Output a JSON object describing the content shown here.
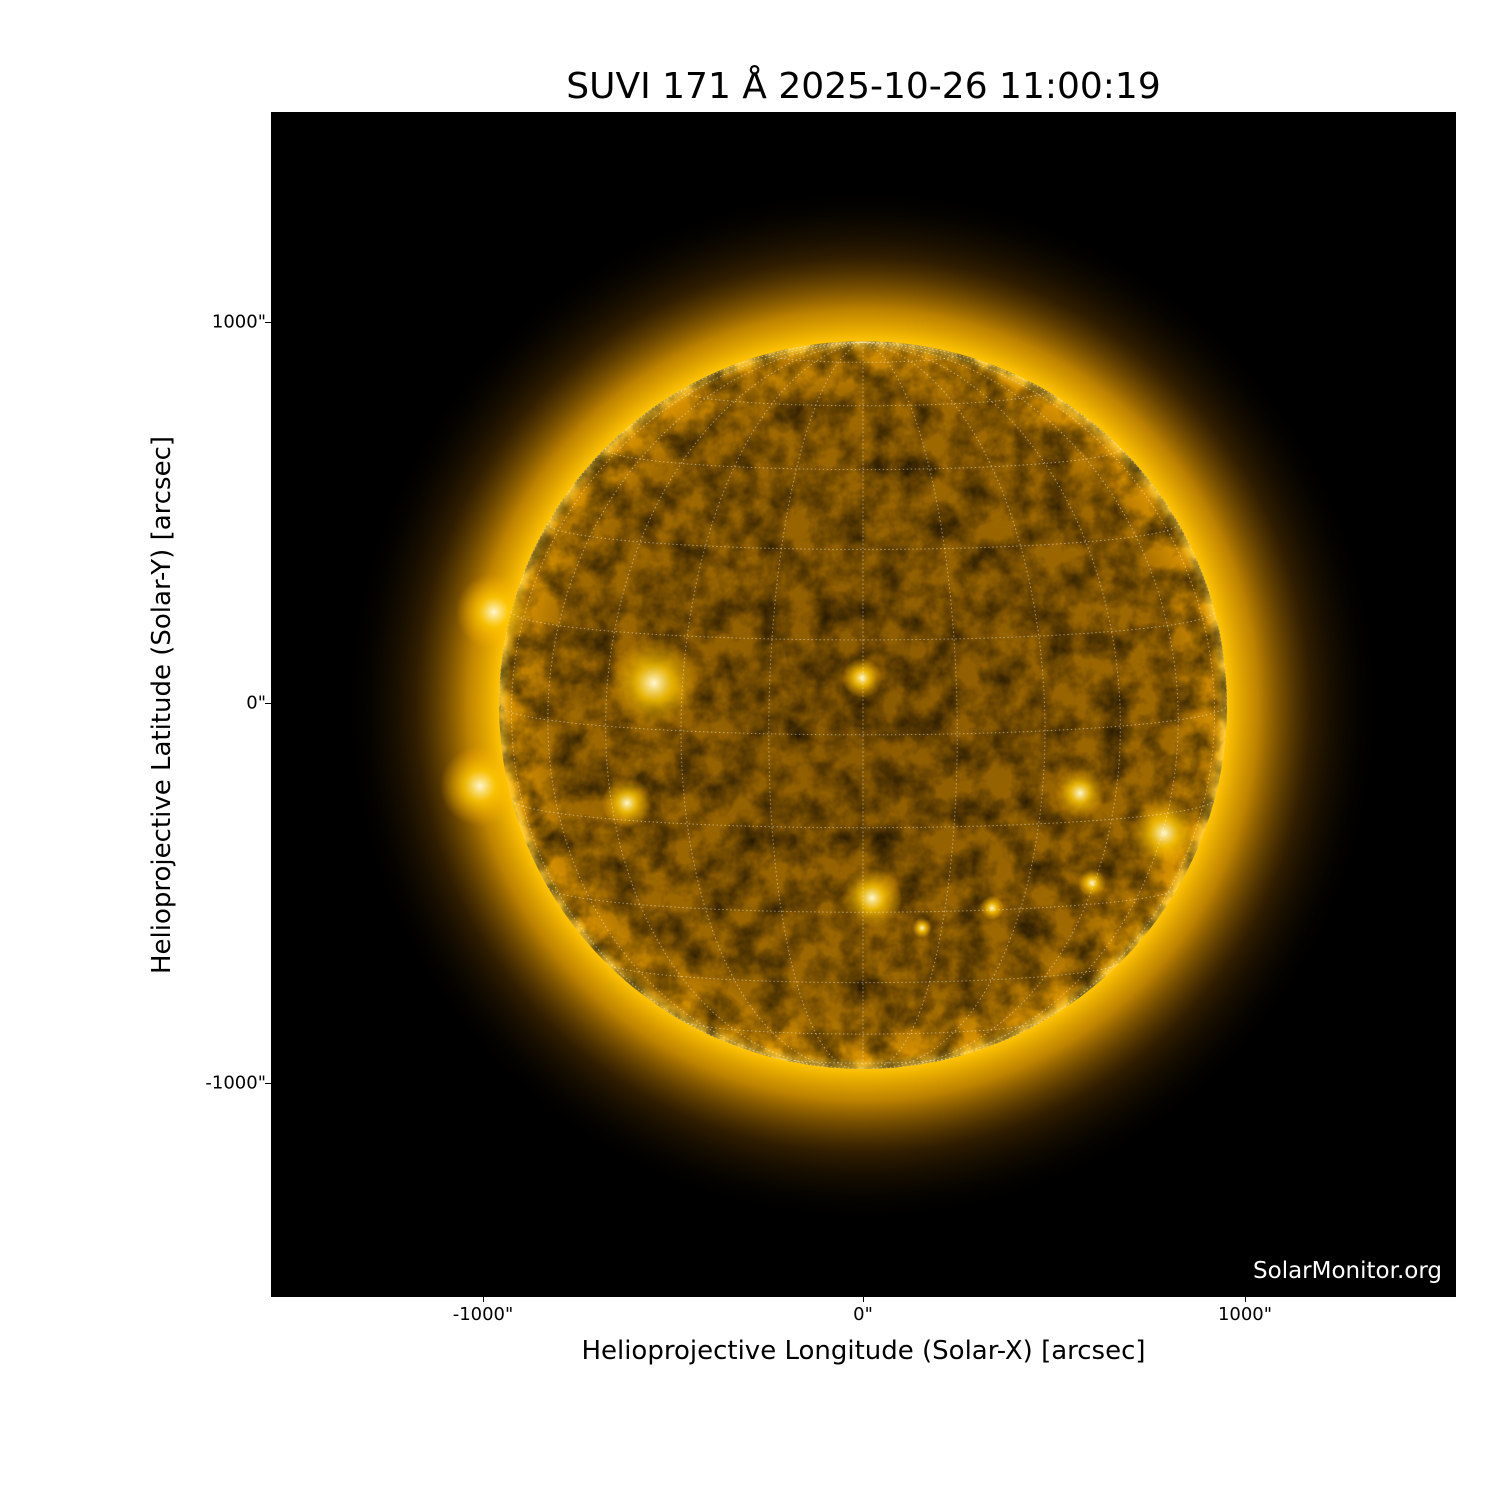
{
  "title": "SUVI 171 Å 2025-10-26 11:00:19",
  "watermark": "SolarMonitor.org",
  "x_axis": {
    "label": "Helioprojective Longitude (Solar-X) [arcsec]",
    "ticks": [
      "-1000\"",
      "0\"",
      "1000\""
    ],
    "tick_values": [
      -1000,
      0,
      1000
    ],
    "range": [
      -1550,
      1550
    ]
  },
  "y_axis": {
    "label": "Helioprojective Latitude (Solar-Y) [arcsec]",
    "ticks": [
      "1000\"",
      "0\"",
      "-1000\""
    ],
    "tick_values": [
      1000,
      0,
      -1000
    ],
    "range": [
      -1550,
      1550
    ]
  },
  "image": {
    "instrument": "SUVI",
    "wavelength": "171 Å",
    "colormap_color": "#ffb000",
    "background": "#000000",
    "solar_radius_arcsec": 960,
    "grid": "heliographic dotted, 15° spacing"
  }
}
